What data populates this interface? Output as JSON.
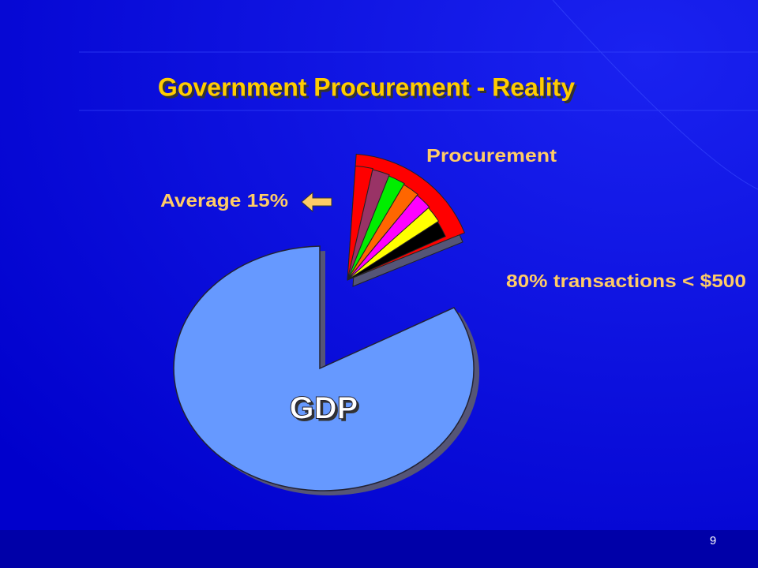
{
  "slide": {
    "title": "Government Procurement - Reality",
    "labels": {
      "procurement": "Procurement",
      "average": "Average 15%",
      "transactions": "80% transactions < $500",
      "gdp": "GDP"
    },
    "page_number": "9"
  }
}
